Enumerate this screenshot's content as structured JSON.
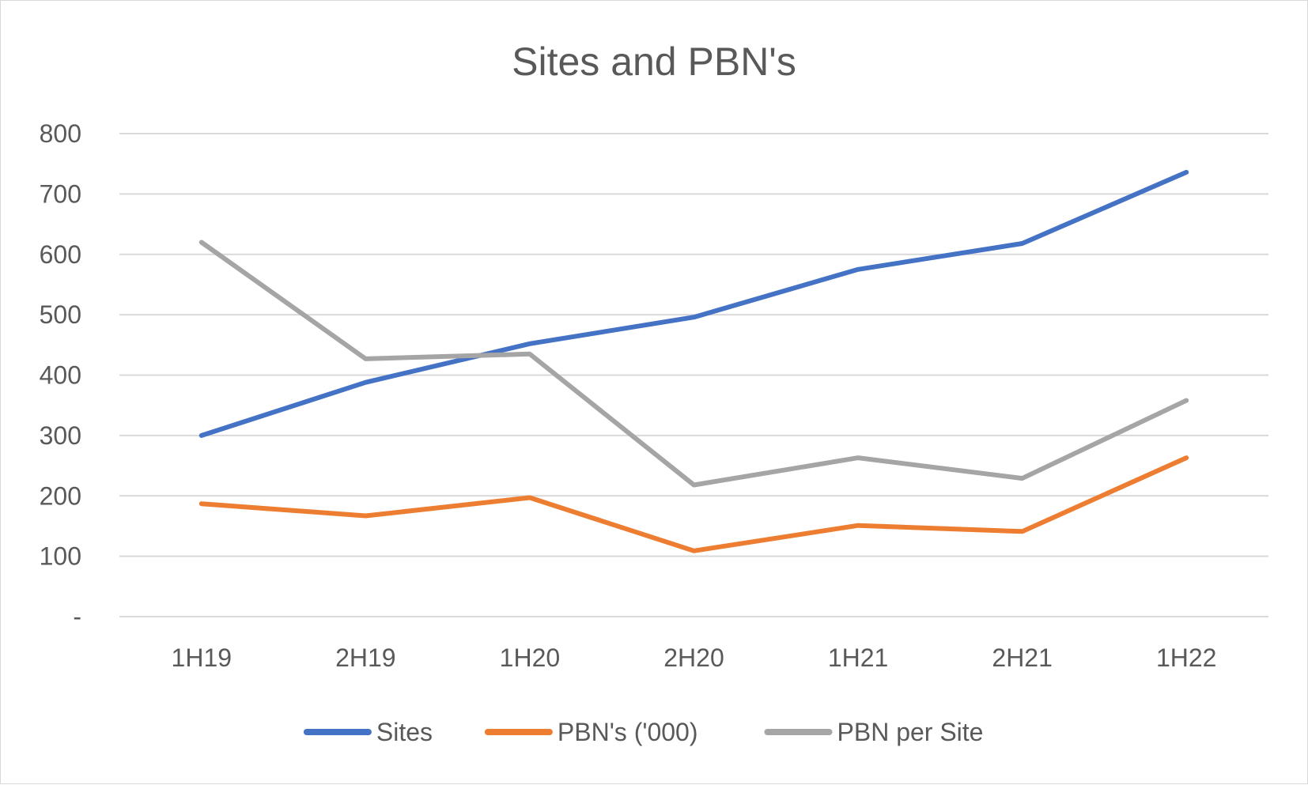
{
  "chart_data": {
    "type": "line",
    "title": "Sites and PBN's",
    "categories": [
      "1H19",
      "2H19",
      "1H20",
      "2H20",
      "1H21",
      "2H21",
      "1H22"
    ],
    "y_tick_labels": [
      "-",
      "100",
      "200",
      "300",
      "400",
      "500",
      "600",
      "700",
      "800"
    ],
    "ylim": [
      0,
      800
    ],
    "grid": true,
    "legend": "bottom",
    "series": [
      {
        "name": "Sites",
        "color": "#4472c4",
        "values": [
          300,
          388,
          452,
          496,
          575,
          618,
          736
        ]
      },
      {
        "name": "PBN's ('000)",
        "color": "#ed7d31",
        "values": [
          187,
          167,
          197,
          109,
          151,
          141,
          263
        ]
      },
      {
        "name": "PBN per Site",
        "color": "#a5a5a5",
        "values": [
          620,
          427,
          435,
          218,
          263,
          229,
          358
        ]
      }
    ]
  }
}
